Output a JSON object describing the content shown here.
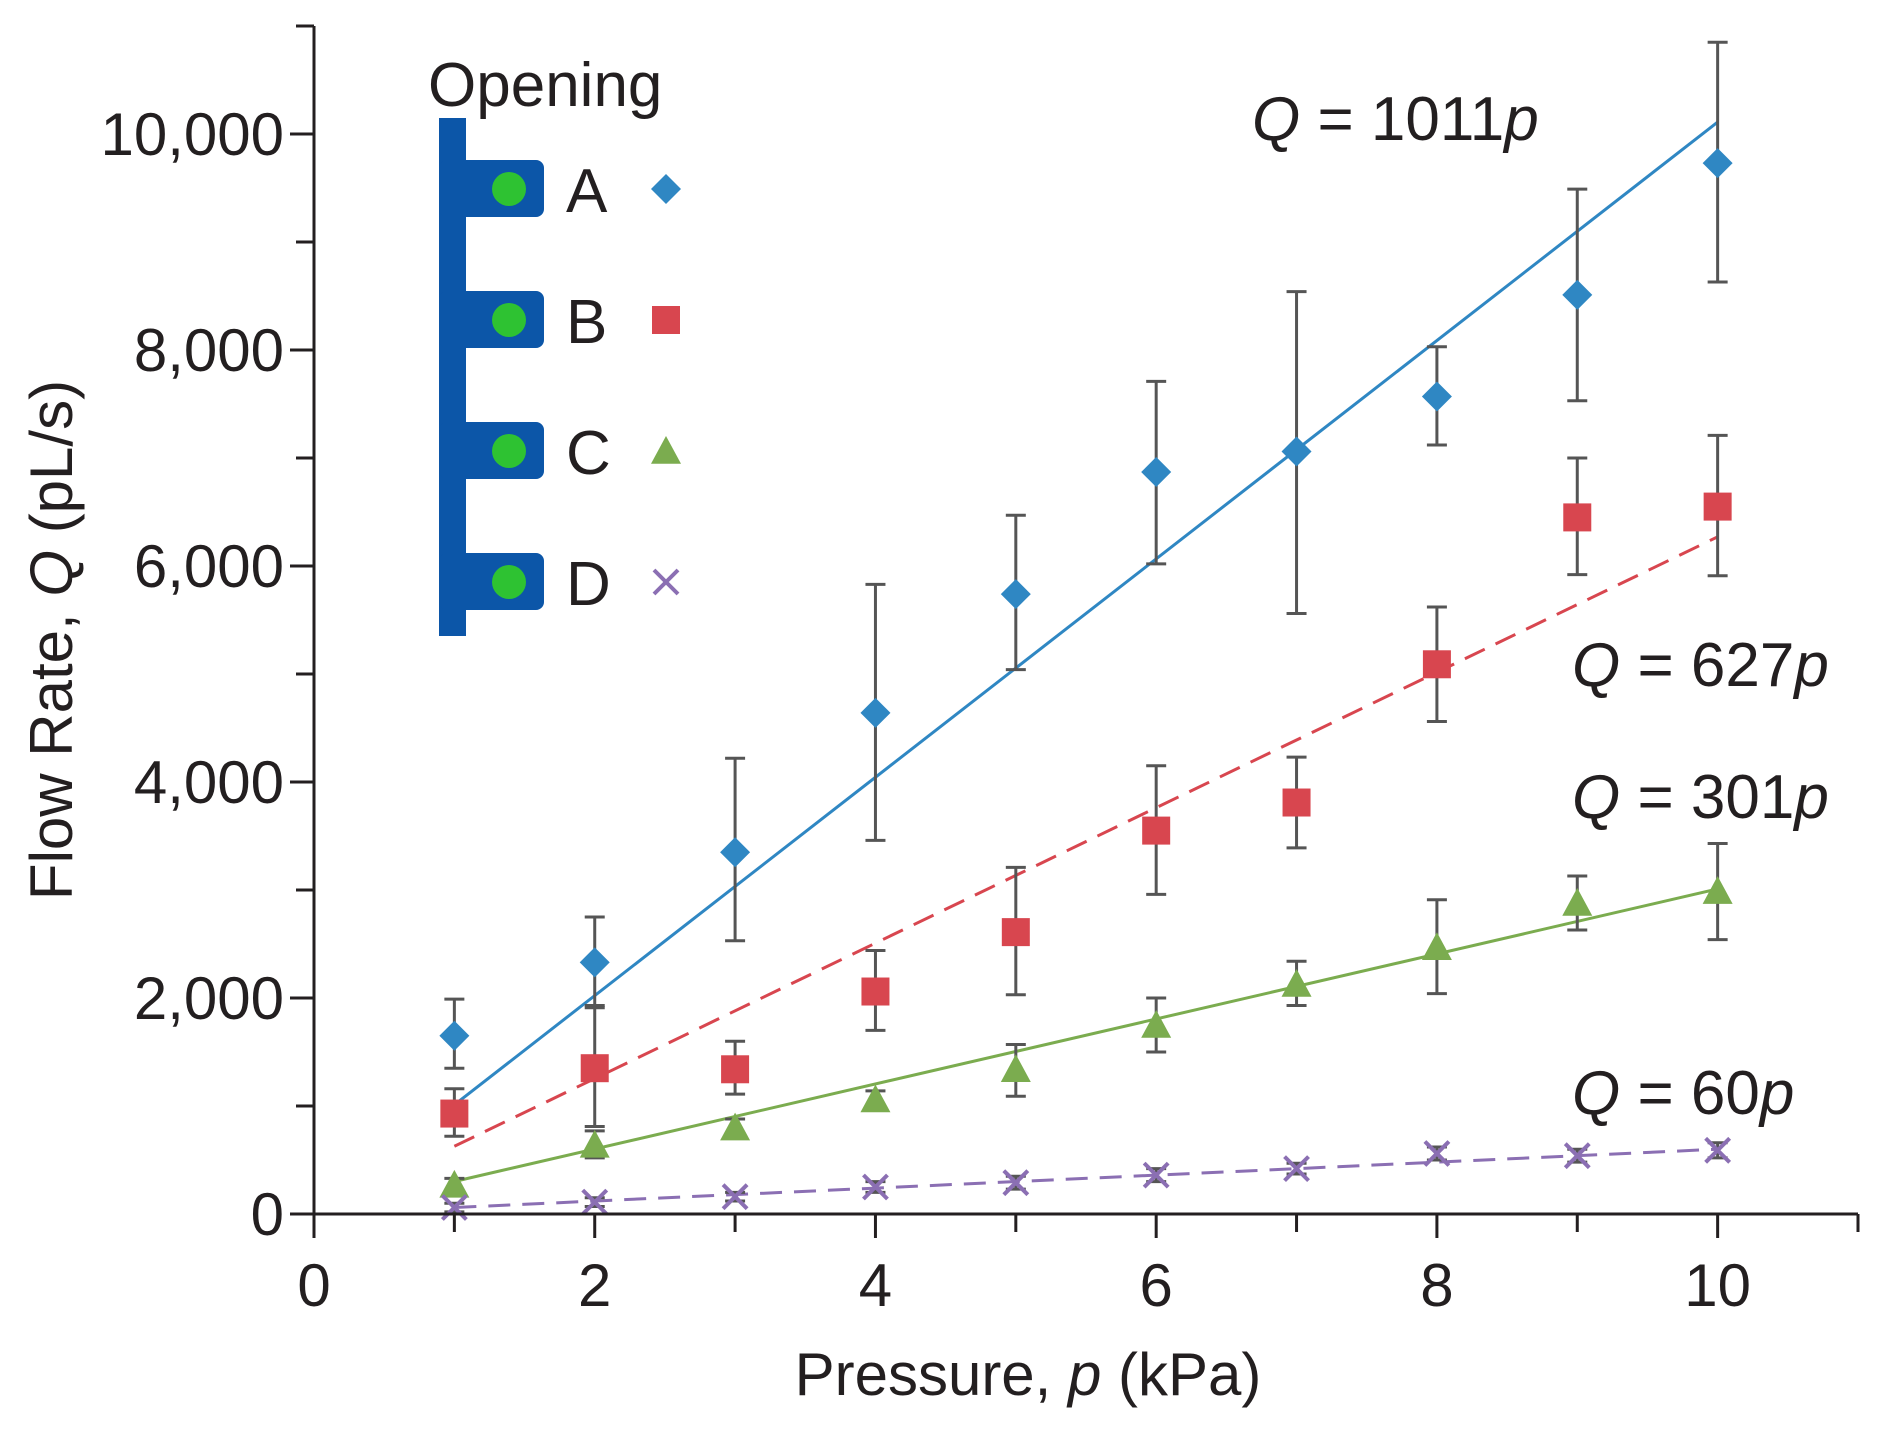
{
  "chart_data": {
    "type": "scatter",
    "xlabel": {
      "prefix": "Pressure, ",
      "var": "p",
      "suffix": " (kPa)"
    },
    "ylabel": {
      "prefix": "Flow Rate, ",
      "var": "Q",
      "suffix": " (pL/s)"
    },
    "xlim": [
      0,
      11
    ],
    "ylim": [
      0,
      11000
    ],
    "x_ticks": [
      0,
      2,
      4,
      6,
      8,
      10
    ],
    "x_tick_labels": [
      "0",
      "2",
      "4",
      "6",
      "8",
      "10"
    ],
    "y_ticks": [
      0,
      2000,
      4000,
      6000,
      8000,
      10000
    ],
    "y_tick_labels": [
      "0",
      "2,000",
      "4,000",
      "6,000",
      "8,000",
      "10,000"
    ],
    "y_minor_step": 1000,
    "x_minor_step": 1,
    "legend_title": "Opening",
    "legend_placement": "top-left",
    "colors": {
      "axis": "#231f20",
      "error_bar": "#555555",
      "legend_bar": "#0c56a8",
      "legend_dot": "#2ec232"
    },
    "series": [
      {
        "name": "A",
        "marker": "diamond",
        "color": "#2f87c3",
        "fit_style": "solid",
        "slope": 1011,
        "fit_label": {
          "prefix": "Q",
          "text": " = 1011",
          "suffix": "p"
        },
        "x": [
          1,
          2,
          3,
          4,
          5,
          6,
          7,
          8,
          9,
          10
        ],
        "y": [
          1650,
          2330,
          3350,
          4640,
          5740,
          6870,
          7060,
          7570,
          8510,
          9730
        ],
        "err_low": [
          300,
          400,
          820,
          1180,
          700,
          850,
          1500,
          450,
          980,
          1100
        ],
        "err_high": [
          340,
          420,
          870,
          1190,
          730,
          840,
          1480,
          460,
          980,
          1120
        ]
      },
      {
        "name": "B",
        "marker": "square",
        "color": "#d8464f",
        "fit_style": "dashed",
        "slope": 627,
        "fit_label": {
          "prefix": "Q",
          "text": " = 627",
          "suffix": "p"
        },
        "x": [
          1,
          2,
          3,
          4,
          5,
          6,
          7,
          8,
          9,
          10
        ],
        "y": [
          930,
          1350,
          1340,
          2060,
          2610,
          3550,
          3810,
          5090,
          6450,
          6550
        ],
        "err_low": [
          210,
          540,
          230,
          360,
          580,
          590,
          420,
          530,
          530,
          640
        ],
        "err_high": [
          230,
          560,
          260,
          380,
          600,
          600,
          420,
          530,
          550,
          660
        ]
      },
      {
        "name": "C",
        "marker": "triangle",
        "color": "#7bac4f",
        "fit_style": "solid",
        "slope": 301,
        "fit_label": {
          "prefix": "Q",
          "text": " = 301",
          "suffix": "p"
        },
        "x": [
          1,
          2,
          3,
          4,
          5,
          6,
          7,
          8,
          9,
          10
        ],
        "y": [
          270,
          640,
          800,
          1060,
          1340,
          1750,
          2130,
          2470,
          2880,
          2990
        ],
        "err_low": [
          60,
          120,
          80,
          80,
          250,
          250,
          200,
          430,
          250,
          450
        ],
        "err_high": [
          60,
          130,
          80,
          80,
          230,
          250,
          210,
          440,
          250,
          440
        ]
      },
      {
        "name": "D",
        "marker": "cross",
        "color": "#8b6fb3",
        "fit_style": "dashed",
        "slope": 60,
        "fit_label": {
          "prefix": "Q",
          "text": " = 60",
          "suffix": "p"
        },
        "x": [
          1,
          2,
          3,
          4,
          5,
          6,
          7,
          8,
          9,
          10
        ],
        "y": [
          60,
          110,
          160,
          250,
          290,
          360,
          420,
          560,
          540,
          590
        ],
        "err_low": [
          40,
          40,
          40,
          50,
          60,
          60,
          50,
          60,
          60,
          70
        ],
        "err_high": [
          40,
          40,
          40,
          50,
          60,
          60,
          50,
          60,
          60,
          70
        ]
      }
    ]
  }
}
